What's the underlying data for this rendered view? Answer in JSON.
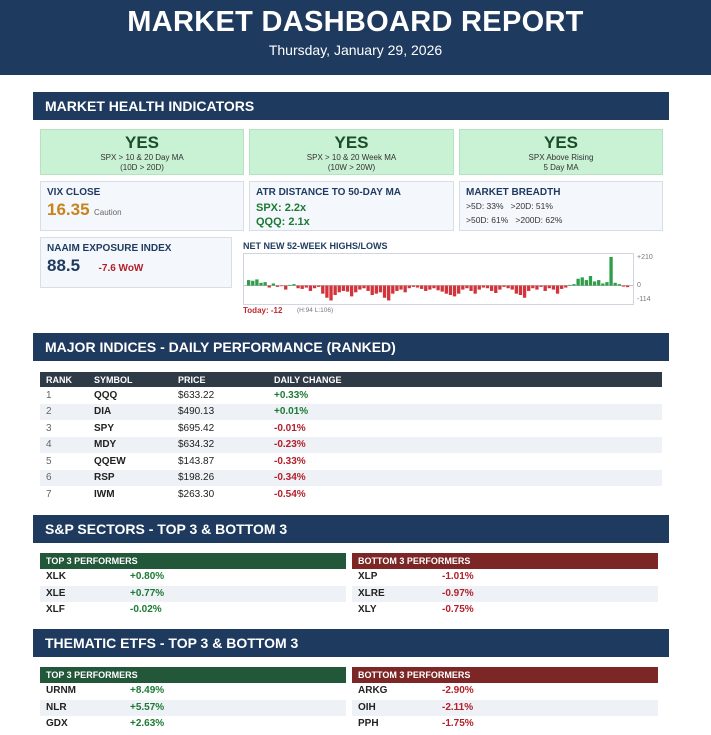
{
  "header": {
    "title": "MARKET DASHBOARD REPORT",
    "date": "Thursday, January 29, 2026"
  },
  "health": {
    "section_title": "MARKET HEALTH INDICATORS",
    "signals": [
      {
        "status": "YES",
        "line1": "SPX > 10 & 20 Day MA",
        "line2": "(10D > 20D)"
      },
      {
        "status": "YES",
        "line1": "SPX > 10 & 20 Week MA",
        "line2": "(10W > 20W)"
      },
      {
        "status": "YES",
        "line1": "SPX Above Rising",
        "line2": "5 Day MA"
      }
    ],
    "vix": {
      "title": "VIX CLOSE",
      "value": "16.35",
      "label": "Caution"
    },
    "atr": {
      "title": "ATR DISTANCE TO 50-DAY MA",
      "spx": "SPX: 2.2x",
      "qqq": "QQQ: 2.1x"
    },
    "breadth": {
      "title": "MARKET BREADTH",
      "line1": ">5D: 33%   >20D: 51%",
      "line2": ">50D: 61%   >200D: 62%"
    },
    "naaim": {
      "title": "NAAIM EXPOSURE INDEX",
      "value": "88.5",
      "change": "-7.6 WoW"
    },
    "highs_lows": {
      "title": "NET NEW 52-WEEK HIGHS/LOWS",
      "axis_top": "+210",
      "axis_zero": "0",
      "axis_bottom": "-114",
      "today": "Today: -12",
      "range": "(H:94 L:106)",
      "values": [
        40,
        35,
        45,
        20,
        25,
        -15,
        15,
        -10,
        -5,
        -30,
        5,
        10,
        -20,
        -25,
        -15,
        -40,
        -20,
        -10,
        -60,
        -90,
        -110,
        -70,
        -50,
        -40,
        -45,
        -80,
        -50,
        -30,
        -20,
        -40,
        -70,
        -60,
        -50,
        -90,
        -110,
        -60,
        -40,
        -30,
        -50,
        -20,
        -10,
        -15,
        -25,
        -40,
        -30,
        -20,
        -35,
        -45,
        -60,
        -70,
        -80,
        -60,
        -30,
        -20,
        -40,
        -60,
        -30,
        -15,
        -20,
        -40,
        -55,
        -30,
        -10,
        -20,
        -30,
        -60,
        -70,
        -90,
        -40,
        -20,
        -30,
        -10,
        -40,
        -20,
        -30,
        -60,
        -25,
        -15,
        5,
        10,
        50,
        60,
        40,
        70,
        30,
        40,
        15,
        25,
        210,
        20,
        10,
        -8,
        -12
      ]
    }
  },
  "indices": {
    "section_title": "MAJOR INDICES - DAILY PERFORMANCE (RANKED)",
    "columns": [
      "RANK",
      "SYMBOL",
      "PRICE",
      "DAILY CHANGE"
    ],
    "rows": [
      {
        "rank": "1",
        "symbol": "QQQ",
        "price": "$633.22",
        "change": "+0.33%"
      },
      {
        "rank": "2",
        "symbol": "DIA",
        "price": "$490.13",
        "change": "+0.01%"
      },
      {
        "rank": "3",
        "symbol": "SPY",
        "price": "$695.42",
        "change": "-0.01%"
      },
      {
        "rank": "4",
        "symbol": "MDY",
        "price": "$634.32",
        "change": "-0.23%"
      },
      {
        "rank": "5",
        "symbol": "QQEW",
        "price": "$143.87",
        "change": "-0.33%"
      },
      {
        "rank": "6",
        "symbol": "RSP",
        "price": "$198.26",
        "change": "-0.34%"
      },
      {
        "rank": "7",
        "symbol": "IWM",
        "price": "$263.30",
        "change": "-0.54%"
      }
    ]
  },
  "sectors": {
    "section_title": "S&P SECTORS - TOP 3 & BOTTOM 3",
    "top_title": "TOP 3 PERFORMERS",
    "bottom_title": "BOTTOM 3 PERFORMERS",
    "top": [
      {
        "symbol": "XLK",
        "change": "+0.80%"
      },
      {
        "symbol": "XLE",
        "change": "+0.77%"
      },
      {
        "symbol": "XLF",
        "change": "-0.02%"
      }
    ],
    "bottom": [
      {
        "symbol": "XLP",
        "change": "-1.01%"
      },
      {
        "symbol": "XLRE",
        "change": "-0.97%"
      },
      {
        "symbol": "XLY",
        "change": "-0.75%"
      }
    ]
  },
  "thematic": {
    "section_title": "THEMATIC ETFS - TOP 3 & BOTTOM 3",
    "top_title": "TOP 3 PERFORMERS",
    "bottom_title": "BOTTOM 3 PERFORMERS",
    "top": [
      {
        "symbol": "URNM",
        "change": "+8.49%"
      },
      {
        "symbol": "NLR",
        "change": "+5.57%"
      },
      {
        "symbol": "GDX",
        "change": "+2.63%"
      }
    ],
    "bottom": [
      {
        "symbol": "ARKG",
        "change": "-2.90%"
      },
      {
        "symbol": "OIH",
        "change": "-2.11%"
      },
      {
        "symbol": "PPH",
        "change": "-1.75%"
      }
    ]
  },
  "colors": {
    "navy": "#1e3a5f",
    "green": "#1c7a34",
    "red": "#b3202a",
    "amber": "#c8841c"
  }
}
